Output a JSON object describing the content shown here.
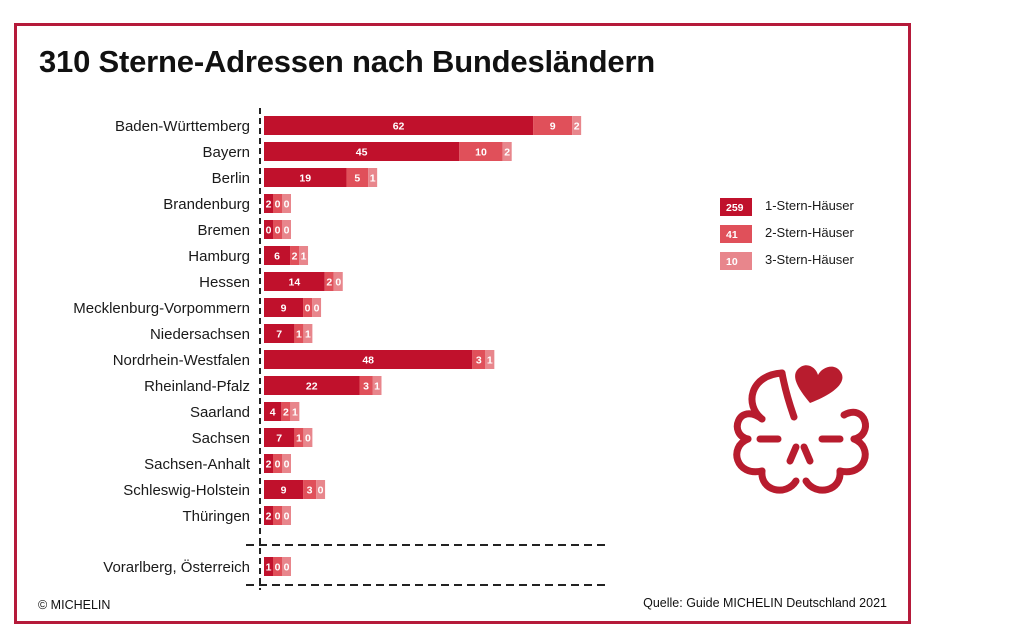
{
  "chart_data": {
    "type": "bar",
    "orientation": "horizontal",
    "stacked": true,
    "title": "310 Sterne-Adressen nach Bundesländern",
    "xlabel": "",
    "ylabel": "",
    "grid": false,
    "legend_position": "right",
    "categories": [
      "Baden-Württemberg",
      "Bayern",
      "Berlin",
      "Brandenburg",
      "Bremen",
      "Hamburg",
      "Hessen",
      "Mecklenburg-Vorpommern",
      "Niedersachsen",
      "Nordrhein-Westfalen",
      "Rheinland-Pfalz",
      "Saarland",
      "Sachsen",
      "Sachsen-Anhalt",
      "Schleswig-Holstein",
      "Thüringen",
      "Vorarlberg, Österreich"
    ],
    "series": [
      {
        "name": "1-Stern-Häuser",
        "total": "259",
        "color": "#c0112c",
        "values": [
          62,
          45,
          19,
          2,
          0,
          6,
          14,
          9,
          7,
          48,
          22,
          4,
          7,
          2,
          9,
          2,
          1
        ]
      },
      {
        "name": "2-Stern-Häuser",
        "total": "41",
        "color": "#e0505a",
        "values": [
          9,
          10,
          5,
          0,
          0,
          2,
          2,
          0,
          1,
          3,
          3,
          2,
          1,
          0,
          3,
          0,
          0
        ]
      },
      {
        "name": "3-Stern-Häuser",
        "total": "10",
        "color": "#e8868c",
        "values": [
          2,
          2,
          1,
          0,
          0,
          1,
          0,
          0,
          1,
          1,
          1,
          1,
          0,
          0,
          0,
          0,
          0
        ]
      }
    ],
    "separated_category": "Vorarlberg, Österreich"
  },
  "footer": {
    "copyright": "© MICHELIN",
    "source": "Quelle: Guide MICHELIN Deutschland 2021"
  },
  "colors": {
    "frame": "#b51a3a",
    "logo": "#b81c2e"
  },
  "logo": {
    "icon": "michelin-star-icon"
  }
}
